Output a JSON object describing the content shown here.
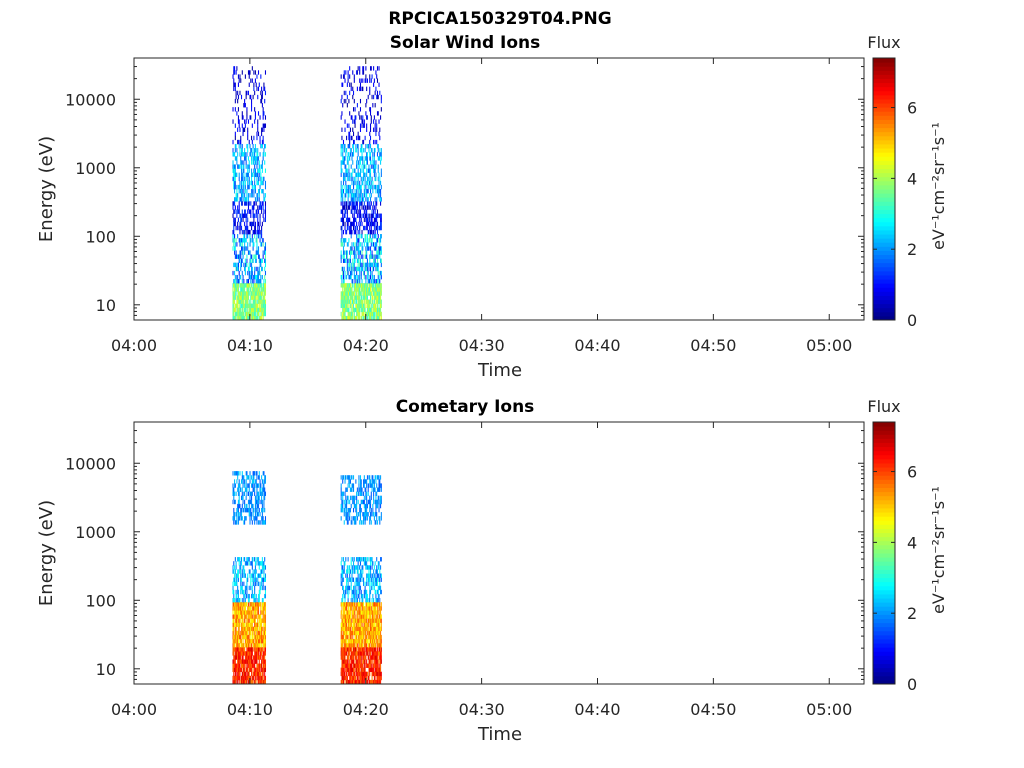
{
  "figure": {
    "title": "RPCICA150329T04.PNG"
  },
  "chart_data": [
    {
      "type": "heatmap",
      "title": "Solar Wind Ions",
      "xlabel": "Time",
      "ylabel": "Energy (eV)",
      "yscale": "log",
      "ylim": [
        6,
        40000
      ],
      "xlim": [
        "04:00",
        "05:03"
      ],
      "xticks": [
        "04:00",
        "04:10",
        "04:20",
        "04:30",
        "04:40",
        "04:50",
        "05:00"
      ],
      "yticks": [
        10,
        100,
        1000,
        10000
      ],
      "ytick_labels": [
        "10",
        "100",
        "1000",
        "10000"
      ],
      "colorbar": {
        "label": "Flux",
        "unit": "eV-1cm-2sr-1s-1",
        "range": [
          0,
          7.4
        ],
        "ticks": [
          "0",
          "2",
          "4",
          "6"
        ],
        "colormap": "jet"
      },
      "grid": false,
      "bursts": [
        {
          "time_range": [
            "04:08:30",
            "04:11:20"
          ],
          "bands": [
            {
              "energy_range": [
                6,
                20
              ],
              "flux_range": [
                3,
                4.5
              ]
            },
            {
              "energy_range": [
                20,
                100
              ],
              "flux_range": [
                1,
                3.5
              ]
            },
            {
              "energy_range": [
                100,
                300
              ],
              "flux_range": [
                0.3,
                1.5
              ]
            },
            {
              "energy_range": [
                300,
                2000
              ],
              "flux_range": [
                1.5,
                3
              ]
            },
            {
              "energy_range": [
                2000,
                30000
              ],
              "flux_range": [
                0.2,
                1.2
              ]
            }
          ]
        },
        {
          "time_range": [
            "04:17:50",
            "04:21:20"
          ],
          "bands": [
            {
              "energy_range": [
                6,
                20
              ],
              "flux_range": [
                3,
                4.5
              ]
            },
            {
              "energy_range": [
                20,
                100
              ],
              "flux_range": [
                1,
                3.5
              ]
            },
            {
              "energy_range": [
                100,
                300
              ],
              "flux_range": [
                0.3,
                1.5
              ]
            },
            {
              "energy_range": [
                300,
                2000
              ],
              "flux_range": [
                1.5,
                3
              ]
            },
            {
              "energy_range": [
                2000,
                30000
              ],
              "flux_range": [
                0.2,
                1.2
              ]
            }
          ]
        }
      ]
    },
    {
      "type": "heatmap",
      "title": "Cometary Ions",
      "xlabel": "Time",
      "ylabel": "Energy (eV)",
      "yscale": "log",
      "ylim": [
        6,
        40000
      ],
      "xlim": [
        "04:00",
        "05:03"
      ],
      "xticks": [
        "04:00",
        "04:10",
        "04:20",
        "04:30",
        "04:40",
        "04:50",
        "05:00"
      ],
      "yticks": [
        10,
        100,
        1000,
        10000
      ],
      "ytick_labels": [
        "10",
        "100",
        "1000",
        "10000"
      ],
      "colorbar": {
        "label": "Flux",
        "unit": "eV-1cm-2sr-1s-1",
        "range": [
          0,
          7.4
        ],
        "ticks": [
          "0",
          "2",
          "4",
          "6"
        ],
        "colormap": "jet"
      },
      "grid": false,
      "bursts": [
        {
          "time_range": [
            "04:08:30",
            "04:11:20"
          ],
          "bands": [
            {
              "energy_range": [
                6,
                20
              ],
              "flux_range": [
                5.5,
                6.8
              ]
            },
            {
              "energy_range": [
                20,
                90
              ],
              "flux_range": [
                4.5,
                6
              ]
            },
            {
              "energy_range": [
                90,
                400
              ],
              "flux_range": [
                1.5,
                3
              ]
            },
            {
              "energy_range": [
                1200,
                7000
              ],
              "flux_range": [
                1.5,
                2.5
              ]
            }
          ]
        },
        {
          "time_range": [
            "04:17:50",
            "04:21:20"
          ],
          "bands": [
            {
              "energy_range": [
                6,
                20
              ],
              "flux_range": [
                5.5,
                6.8
              ]
            },
            {
              "energy_range": [
                20,
                90
              ],
              "flux_range": [
                4.5,
                6
              ]
            },
            {
              "energy_range": [
                90,
                400
              ],
              "flux_range": [
                1.5,
                3
              ]
            },
            {
              "energy_range": [
                1200,
                6000
              ],
              "flux_range": [
                1.5,
                2.5
              ]
            }
          ]
        }
      ]
    }
  ]
}
